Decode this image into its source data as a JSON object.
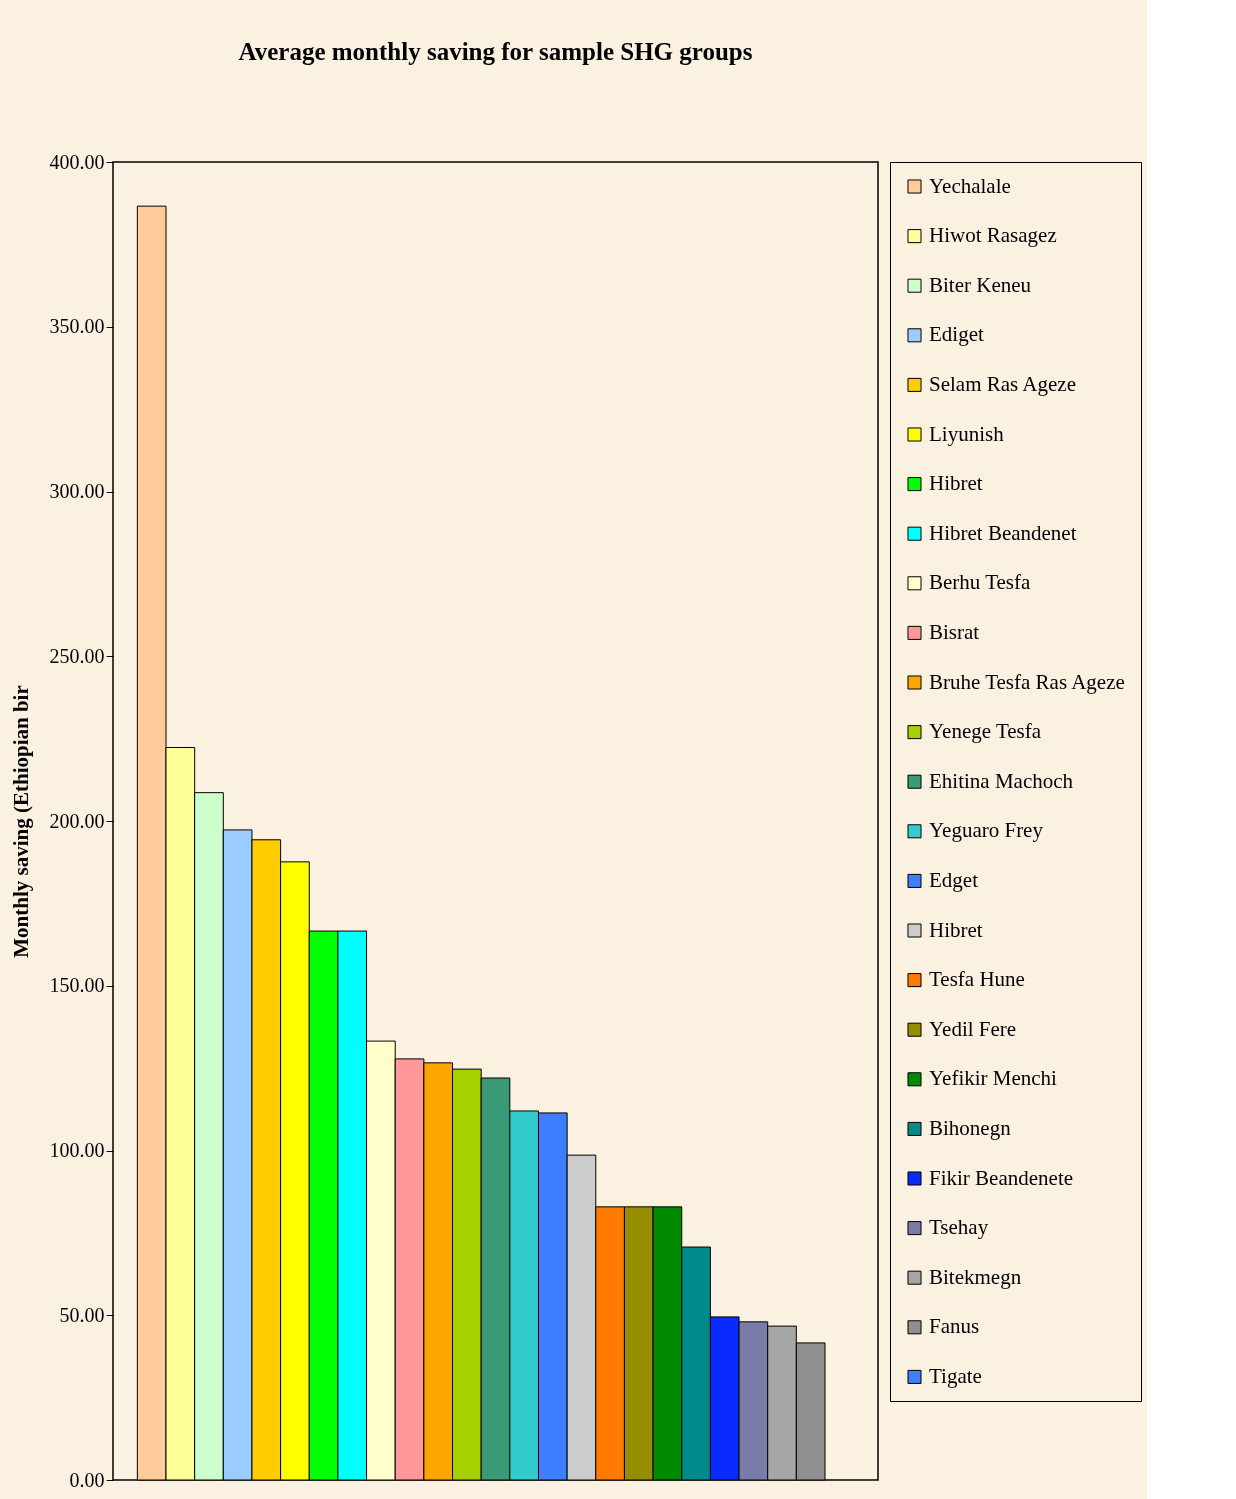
{
  "chart_data": {
    "type": "bar",
    "title": "Average monthly saving for sample SHG groups",
    "ylabel": "Monthly saving (Ethiopian bir",
    "categories": [
      null
    ],
    "ylim": [
      0,
      400
    ],
    "yticks": [
      {
        "value": 0,
        "label": "0.00"
      },
      {
        "value": 50,
        "label": "50.00"
      },
      {
        "value": 100,
        "label": "100.00"
      },
      {
        "value": 150,
        "label": "150.00"
      },
      {
        "value": 200,
        "label": "200.00"
      },
      {
        "value": 250,
        "label": "250.00"
      },
      {
        "value": 300,
        "label": "300.00"
      },
      {
        "value": 350,
        "label": "350.00"
      },
      {
        "value": 400,
        "label": "400.00"
      }
    ],
    "grid": false,
    "legend": "right",
    "series": [
      {
        "name": "Yechalale",
        "color": "#ffcc99",
        "values": [
          386.6
        ]
      },
      {
        "name": "Hiwot Rasagez",
        "color": "#ffff99",
        "values": [
          222.3
        ]
      },
      {
        "name": "Biter Keneu",
        "color": "#ccffcc",
        "values": [
          208.6
        ]
      },
      {
        "name": "Ediget",
        "color": "#99ccff",
        "values": [
          197.3
        ]
      },
      {
        "name": "Selam Ras Ageze",
        "color": "#ffcc00",
        "values": [
          194.3
        ]
      },
      {
        "name": "Liyunish",
        "color": "#ffff00",
        "values": [
          187.6
        ]
      },
      {
        "name": "Hibret",
        "color": "#00ff00",
        "values": [
          166.6
        ]
      },
      {
        "name": "Hibret Beandenet",
        "color": "#00ffff",
        "values": [
          166.6
        ]
      },
      {
        "name": "Berhu Tesfa",
        "color": "#ffffcc",
        "values": [
          133.2
        ]
      },
      {
        "name": "Bisrat",
        "color": "#ff9999",
        "values": [
          127.8
        ]
      },
      {
        "name": "Bruhe Tesfa Ras Ageze",
        "color": "#ffa500",
        "values": [
          126.6
        ]
      },
      {
        "name": "Yenege Tesfa",
        "color": "#a6d100",
        "values": [
          124.7
        ]
      },
      {
        "name": "Ehitina Machoch",
        "color": "#3a9a76",
        "values": [
          122.0
        ]
      },
      {
        "name": "Yeguaro Frey",
        "color": "#33cccc",
        "values": [
          112.0
        ]
      },
      {
        "name": "Edget",
        "color": "#3d7eff",
        "values": [
          111.4
        ]
      },
      {
        "name": "Hibret",
        "color": "#cccccc",
        "values": [
          98.6
        ]
      },
      {
        "name": "Tesfa Hune",
        "color": "#ff7a00",
        "values": [
          82.9
        ]
      },
      {
        "name": "Yedil Fere",
        "color": "#948e00",
        "values": [
          82.9
        ]
      },
      {
        "name": "Yefikir Menchi",
        "color": "#008a00",
        "values": [
          82.9
        ]
      },
      {
        "name": "Bihonegn",
        "color": "#008a8a",
        "values": [
          70.7
        ]
      },
      {
        "name": "Fikir Beandenete",
        "color": "#0a2bff",
        "values": [
          49.5
        ]
      },
      {
        "name": "Tsehay",
        "color": "#7b7baa",
        "values": [
          48.0
        ]
      },
      {
        "name": "Bitekmegn",
        "color": "#a6a6a6",
        "values": [
          46.7
        ]
      },
      {
        "name": "Fanus",
        "color": "#8f8f8f",
        "values": [
          41.6
        ]
      },
      {
        "name": "Tigate",
        "color": "#3d7eff",
        "values": [
          null
        ]
      }
    ]
  }
}
